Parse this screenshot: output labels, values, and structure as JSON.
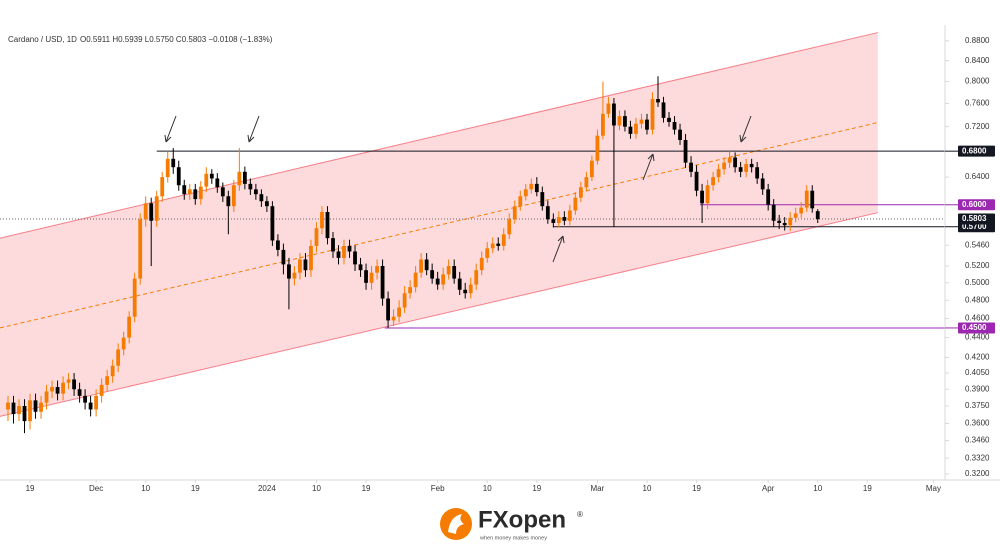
{
  "chart_data": {
    "type": "candlestick",
    "header": {
      "symbol": "Cardano / USD, 1D",
      "ohlc": "O0.5911 H0.5939 L0.5750 C0.5803 −0.0108 (−1.83%)"
    },
    "up_color": "#f57c00",
    "down_color": "#000000",
    "open": [
      0.372,
      0.378,
      0.368,
      0.375,
      0.362,
      0.38,
      0.37,
      0.378,
      0.388,
      0.392,
      0.386,
      0.396,
      0.399,
      0.39,
      0.384,
      0.378,
      0.372,
      0.384,
      0.394,
      0.402,
      0.412,
      0.428,
      0.44,
      0.462,
      0.505,
      0.58,
      0.602,
      0.578,
      0.612,
      0.64,
      0.668,
      0.655,
      0.628,
      0.615,
      0.622,
      0.608,
      0.626,
      0.645,
      0.638,
      0.625,
      0.612,
      0.598,
      0.628,
      0.648,
      0.63,
      0.622,
      0.615,
      0.605,
      0.598,
      0.552,
      0.54,
      0.522,
      0.505,
      0.512,
      0.528,
      0.515,
      0.545,
      0.568,
      0.59,
      0.555,
      0.538,
      0.53,
      0.545,
      0.538,
      0.522,
      0.515,
      0.5,
      0.512,
      0.52,
      0.482,
      0.458,
      0.462,
      0.472,
      0.488,
      0.495,
      0.512,
      0.528,
      0.515,
      0.505,
      0.498,
      0.51,
      0.52,
      0.505,
      0.492,
      0.488,
      0.498,
      0.515,
      0.53,
      0.542,
      0.548,
      0.545,
      0.56,
      0.58,
      0.598,
      0.612,
      0.622,
      0.63,
      0.618,
      0.598,
      0.58,
      0.575,
      0.583,
      0.578,
      0.592,
      0.61,
      0.625,
      0.64,
      0.665,
      0.705,
      0.742,
      0.76,
      0.722,
      0.738,
      0.72,
      0.708,
      0.725,
      0.732,
      0.715,
      0.768,
      0.762,
      0.735,
      0.728,
      0.715,
      0.698,
      0.662,
      0.648,
      0.62,
      0.602,
      0.628,
      0.64,
      0.652,
      0.662,
      0.67,
      0.655,
      0.648,
      0.66,
      0.655,
      0.638,
      0.622,
      0.6,
      0.578,
      0.575,
      0.572,
      0.582,
      0.588,
      0.596,
      0.62,
      0.5911
    ],
    "high": [
      0.384,
      0.384,
      0.381,
      0.381,
      0.386,
      0.386,
      0.384,
      0.394,
      0.398,
      0.398,
      0.402,
      0.405,
      0.405,
      0.396,
      0.39,
      0.384,
      0.39,
      0.4,
      0.408,
      0.418,
      0.434,
      0.446,
      0.468,
      0.512,
      0.588,
      0.612,
      0.61,
      0.62,
      0.648,
      0.68,
      0.685,
      0.665,
      0.636,
      0.63,
      0.63,
      0.634,
      0.655,
      0.652,
      0.646,
      0.632,
      0.62,
      0.636,
      0.685,
      0.656,
      0.638,
      0.63,
      0.622,
      0.612,
      0.605,
      0.56,
      0.548,
      0.53,
      0.52,
      0.536,
      0.536,
      0.553,
      0.576,
      0.598,
      0.598,
      0.563,
      0.546,
      0.553,
      0.553,
      0.546,
      0.53,
      0.523,
      0.52,
      0.528,
      0.528,
      0.49,
      0.47,
      0.48,
      0.496,
      0.503,
      0.52,
      0.536,
      0.536,
      0.523,
      0.513,
      0.518,
      0.528,
      0.528,
      0.513,
      0.5,
      0.506,
      0.523,
      0.538,
      0.55,
      0.556,
      0.556,
      0.568,
      0.588,
      0.606,
      0.62,
      0.63,
      0.638,
      0.64,
      0.626,
      0.606,
      0.588,
      0.591,
      0.591,
      0.6,
      0.618,
      0.633,
      0.648,
      0.673,
      0.715,
      0.8,
      0.772,
      0.77,
      0.748,
      0.748,
      0.73,
      0.735,
      0.742,
      0.742,
      0.78,
      0.81,
      0.772,
      0.745,
      0.738,
      0.725,
      0.708,
      0.672,
      0.658,
      0.63,
      0.636,
      0.648,
      0.66,
      0.67,
      0.68,
      0.678,
      0.663,
      0.668,
      0.668,
      0.663,
      0.646,
      0.63,
      0.608,
      0.586,
      0.583,
      0.59,
      0.596,
      0.604,
      0.628,
      0.628,
      0.5939
    ],
    "low": [
      0.362,
      0.36,
      0.362,
      0.352,
      0.355,
      0.364,
      0.364,
      0.372,
      0.382,
      0.38,
      0.38,
      0.39,
      0.384,
      0.378,
      0.372,
      0.366,
      0.366,
      0.378,
      0.388,
      0.396,
      0.406,
      0.422,
      0.434,
      0.456,
      0.498,
      0.57,
      0.52,
      0.57,
      0.604,
      0.632,
      0.645,
      0.62,
      0.607,
      0.607,
      0.6,
      0.6,
      0.618,
      0.63,
      0.617,
      0.604,
      0.56,
      0.59,
      0.62,
      0.622,
      0.614,
      0.607,
      0.597,
      0.59,
      0.545,
      0.532,
      0.51,
      0.47,
      0.497,
      0.504,
      0.507,
      0.507,
      0.537,
      0.56,
      0.547,
      0.53,
      0.522,
      0.522,
      0.53,
      0.514,
      0.507,
      0.492,
      0.492,
      0.504,
      0.474,
      0.45,
      0.452,
      0.456,
      0.466,
      0.482,
      0.489,
      0.506,
      0.509,
      0.499,
      0.492,
      0.492,
      0.504,
      0.499,
      0.486,
      0.482,
      0.482,
      0.492,
      0.509,
      0.524,
      0.536,
      0.539,
      0.539,
      0.554,
      0.574,
      0.592,
      0.606,
      0.616,
      0.612,
      0.592,
      0.574,
      0.569,
      0.569,
      0.572,
      0.572,
      0.586,
      0.604,
      0.619,
      0.634,
      0.659,
      0.699,
      0.735,
      0.57,
      0.714,
      0.712,
      0.7,
      0.7,
      0.717,
      0.707,
      0.707,
      0.754,
      0.727,
      0.72,
      0.707,
      0.69,
      0.654,
      0.64,
      0.612,
      0.575,
      0.594,
      0.62,
      0.632,
      0.644,
      0.654,
      0.647,
      0.64,
      0.64,
      0.647,
      0.63,
      0.614,
      0.592,
      0.57,
      0.567,
      0.565,
      0.564,
      0.576,
      0.582,
      0.59,
      0.589,
      0.575
    ],
    "close": [
      0.378,
      0.368,
      0.375,
      0.362,
      0.38,
      0.37,
      0.378,
      0.388,
      0.392,
      0.386,
      0.396,
      0.399,
      0.39,
      0.384,
      0.378,
      0.372,
      0.384,
      0.394,
      0.402,
      0.412,
      0.428,
      0.44,
      0.462,
      0.505,
      0.58,
      0.602,
      0.578,
      0.612,
      0.64,
      0.668,
      0.655,
      0.628,
      0.615,
      0.622,
      0.608,
      0.626,
      0.645,
      0.638,
      0.625,
      0.612,
      0.598,
      0.628,
      0.648,
      0.63,
      0.622,
      0.615,
      0.605,
      0.598,
      0.552,
      0.54,
      0.522,
      0.505,
      0.512,
      0.528,
      0.515,
      0.545,
      0.568,
      0.59,
      0.555,
      0.538,
      0.53,
      0.545,
      0.538,
      0.522,
      0.515,
      0.5,
      0.512,
      0.52,
      0.482,
      0.458,
      0.462,
      0.472,
      0.488,
      0.495,
      0.512,
      0.528,
      0.515,
      0.505,
      0.498,
      0.51,
      0.52,
      0.505,
      0.492,
      0.488,
      0.498,
      0.515,
      0.53,
      0.542,
      0.548,
      0.545,
      0.56,
      0.58,
      0.598,
      0.612,
      0.622,
      0.63,
      0.618,
      0.598,
      0.58,
      0.575,
      0.583,
      0.578,
      0.592,
      0.61,
      0.625,
      0.64,
      0.665,
      0.705,
      0.742,
      0.76,
      0.722,
      0.738,
      0.72,
      0.708,
      0.725,
      0.732,
      0.715,
      0.768,
      0.762,
      0.735,
      0.728,
      0.715,
      0.698,
      0.662,
      0.648,
      0.62,
      0.602,
      0.628,
      0.64,
      0.652,
      0.662,
      0.67,
      0.655,
      0.648,
      0.66,
      0.655,
      0.638,
      0.622,
      0.6,
      0.578,
      0.575,
      0.572,
      0.582,
      0.588,
      0.596,
      0.62,
      0.595,
      0.5803
    ],
    "xlim": [
      -1.45,
      170.1
    ],
    "xticks": [
      {
        "value": 4,
        "label": "19"
      },
      {
        "value": 16,
        "label": "Dec"
      },
      {
        "value": 25,
        "label": "10"
      },
      {
        "value": 34,
        "label": "19"
      },
      {
        "value": 47,
        "label": "2024"
      },
      {
        "value": 56,
        "label": "10"
      },
      {
        "value": 65,
        "label": "19"
      },
      {
        "value": 78,
        "label": "Feb"
      },
      {
        "value": 87,
        "label": "10"
      },
      {
        "value": 96,
        "label": "19"
      },
      {
        "value": 107,
        "label": "Mar"
      },
      {
        "value": 116,
        "label": "10"
      },
      {
        "value": 125,
        "label": "19"
      },
      {
        "value": 138,
        "label": "Apr"
      },
      {
        "value": 147,
        "label": "10"
      },
      {
        "value": 156,
        "label": "19"
      },
      {
        "value": 168,
        "label": "May"
      }
    ],
    "ylim": [
      0.3155,
      0.913
    ],
    "log_scale": true,
    "grid": false,
    "yticks": [
      {
        "value": 0.88,
        "label": "0.8800"
      },
      {
        "value": 0.84,
        "label": "0.8400"
      },
      {
        "value": 0.8,
        "label": "0.8000"
      },
      {
        "value": 0.76,
        "label": "0.7600"
      },
      {
        "value": 0.72,
        "label": "0.7200"
      },
      {
        "value": 0.64,
        "label": "0.6400"
      },
      {
        "value": 0.546,
        "label": "0.5460"
      },
      {
        "value": 0.52,
        "label": "0.5200"
      },
      {
        "value": 0.5,
        "label": "0.5000"
      },
      {
        "value": 0.48,
        "label": "0.4800"
      },
      {
        "value": 0.46,
        "label": "0.4600"
      },
      {
        "value": 0.44,
        "label": "0.4400"
      },
      {
        "value": 0.42,
        "label": "0.4200"
      },
      {
        "value": 0.405,
        "label": "0.4050"
      },
      {
        "value": 0.39,
        "label": "0.3900"
      },
      {
        "value": 0.375,
        "label": "0.3750"
      },
      {
        "value": 0.36,
        "label": "0.3600"
      },
      {
        "value": 0.346,
        "label": "0.3460"
      },
      {
        "value": 0.332,
        "label": "0.3320"
      },
      {
        "value": 0.32,
        "label": "0.3200"
      }
    ],
    "channel": {
      "color": "#f23645",
      "mid_color": "#f57c00",
      "upper": [
        [
          -1.45,
          0.555
        ],
        [
          157.9,
          0.897
        ]
      ],
      "mid": [
        [
          -1.45,
          0.45
        ],
        [
          157.9,
          0.727
        ]
      ],
      "lower": [
        [
          -1.45,
          0.366
        ],
        [
          157.9,
          0.589
        ]
      ]
    },
    "levels": [
      {
        "value": 0.68,
        "label": "0.6800",
        "color": "#131722",
        "from": 27
      },
      {
        "value": 0.6,
        "label": "0.6000",
        "color": "#9c27b0",
        "from": 125.6
      },
      {
        "value": 0.57,
        "label": "0.5700",
        "color": "#131722",
        "from": 99
      },
      {
        "value": 0.45,
        "label": "0.4500",
        "color": "#9c27b0",
        "from": 68.4
      }
    ],
    "current": {
      "value": 0.5803,
      "label": "0.5803",
      "color": "#131722"
    }
  },
  "footer": {
    "brand": "FXopen",
    "mark": "®",
    "tagline": "when money makes money"
  }
}
